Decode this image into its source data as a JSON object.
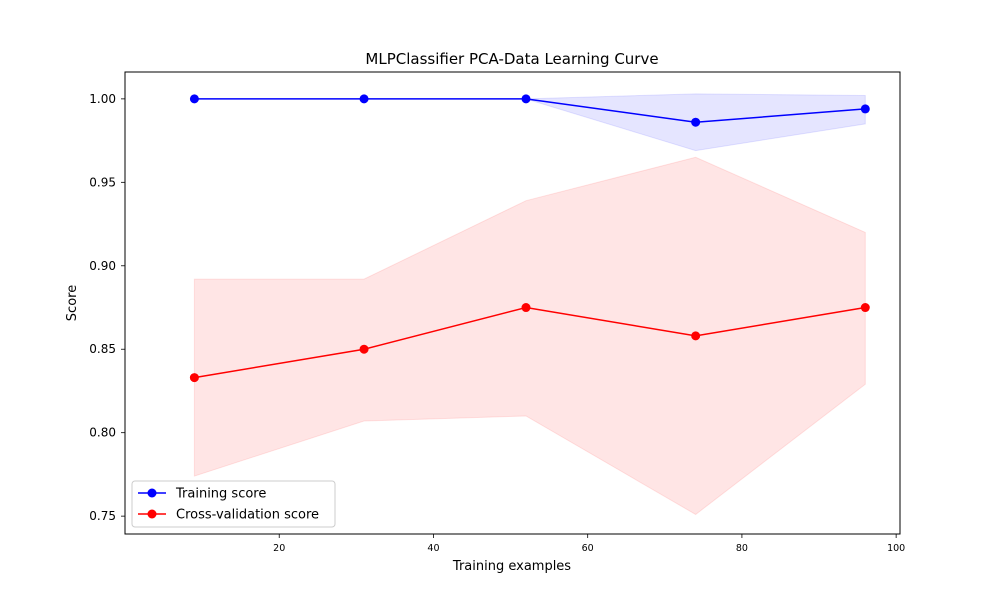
{
  "chart_data": {
    "type": "line",
    "title": "MLPClassifier PCA-Data Learning Curve",
    "xlabel": "Training examples",
    "ylabel": "Score",
    "xlim": [
      0.0,
      100.5
    ],
    "ylim": [
      0.7393,
      1.0161
    ],
    "xticks": [
      20,
      40,
      60,
      80,
      100
    ],
    "xtick_labels": [
      "20",
      "40",
      "60",
      "80",
      "100"
    ],
    "yticks": [
      0.75,
      0.8,
      0.85,
      0.9,
      0.95,
      1.0
    ],
    "ytick_labels": [
      "0.75",
      "0.80",
      "0.85",
      "0.90",
      "0.95",
      "1.00"
    ],
    "grid": false,
    "legend_position": "lower-left",
    "x": [
      9,
      31,
      52,
      74,
      96
    ],
    "series": [
      {
        "name": "Training score",
        "color": "#0000ff",
        "band_color": "#0000ff",
        "values": [
          1.0,
          1.0,
          1.0,
          0.986,
          0.994
        ],
        "lower": [
          1.0,
          1.0,
          1.0,
          0.969,
          0.985
        ],
        "upper": [
          1.0,
          1.0,
          1.0,
          1.003,
          1.002
        ]
      },
      {
        "name": "Cross-validation score",
        "color": "#ff0000",
        "band_color": "#ff0000",
        "values": [
          0.833,
          0.85,
          0.875,
          0.858,
          0.875
        ],
        "lower": [
          0.774,
          0.807,
          0.81,
          0.751,
          0.829
        ],
        "upper": [
          0.892,
          0.892,
          0.939,
          0.965,
          0.92
        ]
      }
    ]
  }
}
